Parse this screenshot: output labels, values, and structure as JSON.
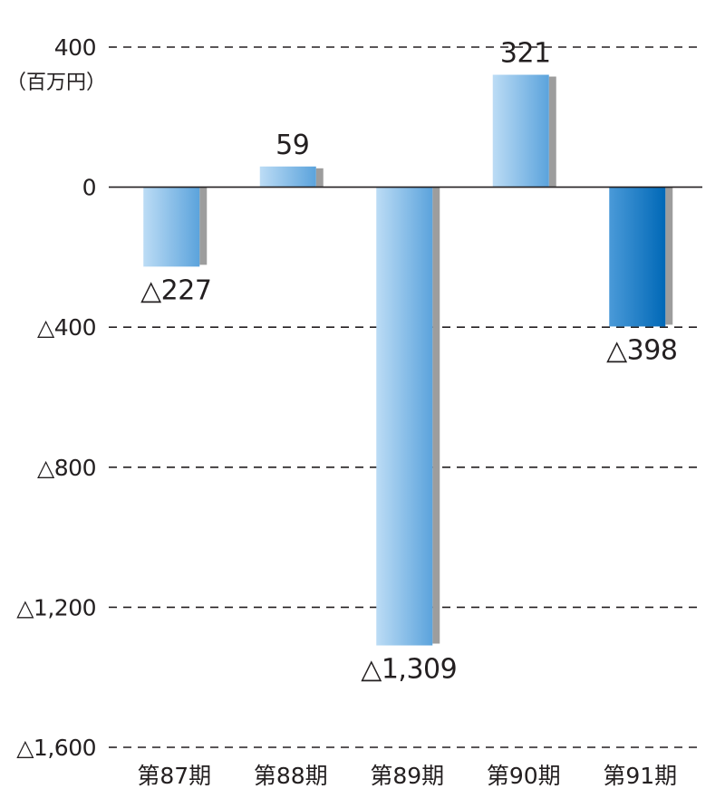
{
  "chart_data": {
    "type": "bar",
    "unit_label": "（百万円）",
    "categories": [
      "第87期",
      "第88期",
      "第89期",
      "第90期",
      "第91期"
    ],
    "values": [
      -227,
      59,
      -1309,
      321,
      -398
    ],
    "value_labels": [
      "△227",
      "59",
      "△1,309",
      "321",
      "△398"
    ],
    "ylim": [
      -1600,
      400
    ],
    "yticks": [
      400,
      0,
      -400,
      -800,
      -1200,
      -1600
    ],
    "ytick_labels": [
      "400",
      "0",
      "△400",
      "△800",
      "△1,200",
      "△1,600"
    ],
    "grid": true,
    "highlight_index": 4,
    "colors": {
      "bar_light": "#bcdcf5",
      "bar_mid": "#5ba3dc",
      "highlight_light": "#4a9ad8",
      "highlight_dark": "#0068b7",
      "shadow": "#9d9d9d",
      "text": "#231f20"
    }
  }
}
